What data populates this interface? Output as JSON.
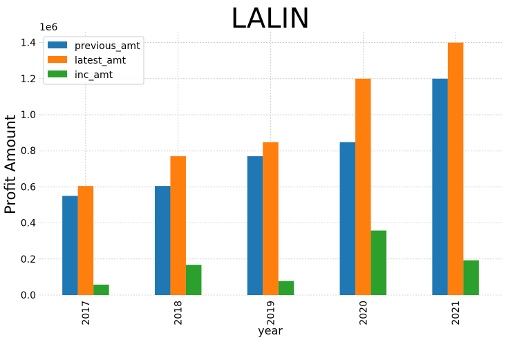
{
  "chart_data": {
    "type": "bar",
    "title": "LALIN",
    "xlabel": "year",
    "ylabel": "Profit Amount",
    "y_offset_label": "1e6",
    "categories": [
      "2017",
      "2018",
      "2019",
      "2020",
      "2021"
    ],
    "series": [
      {
        "name": "previous_amt",
        "color": "#1f77b4",
        "values": [
          550000,
          605000,
          770000,
          848000,
          1200000
        ]
      },
      {
        "name": "latest_amt",
        "color": "#ff7f0e",
        "values": [
          605000,
          770000,
          848000,
          1200000,
          1400000
        ]
      },
      {
        "name": "inc_amt",
        "color": "#2ca02c",
        "values": [
          58000,
          168000,
          78000,
          358000,
          193000
        ]
      }
    ],
    "ylim": [
      0,
      1460000
    ],
    "yticks": [
      0,
      200000,
      400000,
      600000,
      800000,
      1000000,
      1200000,
      1400000
    ],
    "ytick_labels": [
      "0.0",
      "0.2",
      "0.4",
      "0.6",
      "0.8",
      "1.0",
      "1.2",
      "1.4"
    ],
    "grid": true,
    "legend_position": "top-left"
  }
}
